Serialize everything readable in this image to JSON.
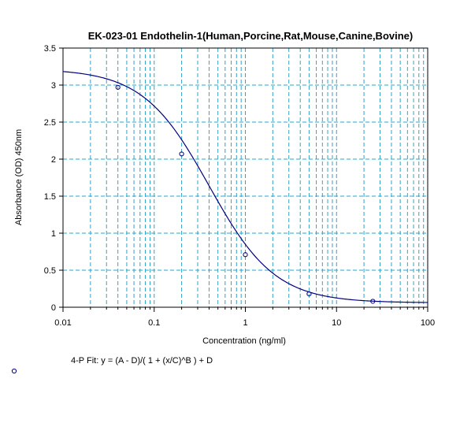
{
  "chart_data": {
    "type": "scatter",
    "title": "EK-023-01 Endothelin-1(Human,Porcine,Rat,Mouse,Canine,Bovine)",
    "xlabel": "Concentration (ng/ml)",
    "ylabel": "Absorbance (OD) 450nm",
    "x_scale": "log",
    "xlim": [
      0.01,
      100
    ],
    "ylim": [
      0,
      3.5
    ],
    "x_ticks": [
      "0.01",
      "0.1",
      "1",
      "10",
      "100"
    ],
    "y_ticks": [
      "0",
      "0.5",
      "1",
      "1.5",
      "2",
      "2.5",
      "3",
      "3.5"
    ],
    "grid": true,
    "series": [
      {
        "points": [
          {
            "x": 0.04,
            "y": 2.97
          },
          {
            "x": 0.2,
            "y": 2.07
          },
          {
            "x": 1,
            "y": 0.71
          },
          {
            "x": 5,
            "y": 0.18
          },
          {
            "x": 25,
            "y": 0.08
          }
        ]
      }
    ],
    "fit": {
      "model": "4-P",
      "equation": "4-P Fit: y = (A - D)/( 1 + (x/C)^B ) + D",
      "A": 3.22,
      "B": 1.2,
      "C": 0.4,
      "D": 0.06
    },
    "colors": {
      "curve": "#000080",
      "points": "#000080",
      "grid": "#29a7c9",
      "axis": "#000000"
    }
  }
}
